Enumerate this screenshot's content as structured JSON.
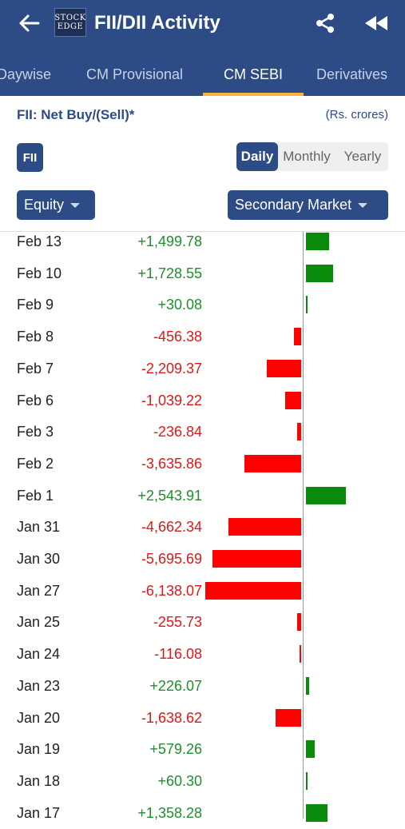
{
  "header": {
    "title": "FII/DII Activity",
    "logo_line1": "STOCK",
    "logo_line2": "EDGE"
  },
  "tabs": [
    {
      "label": "Daywise",
      "active": false
    },
    {
      "label": "CM Provisional",
      "active": false
    },
    {
      "label": "CM SEBI",
      "active": true
    },
    {
      "label": "Derivatives",
      "active": false
    }
  ],
  "section": {
    "title": "FII: Net Buy/(Sell)*",
    "units": "(Rs. crores)",
    "participant": "FII"
  },
  "period": {
    "options": [
      "Daily",
      "Monthly",
      "Yearly"
    ],
    "selected": "Daily"
  },
  "filters": {
    "segment": "Equity",
    "market": "Secondary Market"
  },
  "colors": {
    "primary": "#2d4b85",
    "accent": "#f5b342",
    "positive": "#0a8a0a",
    "negative": "#ff0000"
  },
  "chart_data": {
    "type": "bar",
    "categories": [
      "Feb 13",
      "Feb 10",
      "Feb 9",
      "Feb 8",
      "Feb 7",
      "Feb 6",
      "Feb 3",
      "Feb 2",
      "Feb 1",
      "Jan 31",
      "Jan 30",
      "Jan 27",
      "Jan 25",
      "Jan 24",
      "Jan 23",
      "Jan 20",
      "Jan 19",
      "Jan 18",
      "Jan 17"
    ],
    "labels": [
      "+1,499.78",
      "+1,728.55",
      "+30.08",
      "-456.38",
      "-2,209.37",
      "-1,039.22",
      "-236.84",
      "-3,635.86",
      "+2,543.91",
      "-4,662.34",
      "-5,695.69",
      "-6,138.07",
      "-255.73",
      "-116.08",
      "+226.07",
      "-1,638.62",
      "+579.26",
      "+60.30",
      "+1,358.28"
    ],
    "values": [
      1499.78,
      1728.55,
      30.08,
      -456.38,
      -2209.37,
      -1039.22,
      -236.84,
      -3635.86,
      2543.91,
      -4662.34,
      -5695.69,
      -6138.07,
      -255.73,
      -116.08,
      226.07,
      -1638.62,
      579.26,
      60.3,
      1358.28
    ]
  }
}
